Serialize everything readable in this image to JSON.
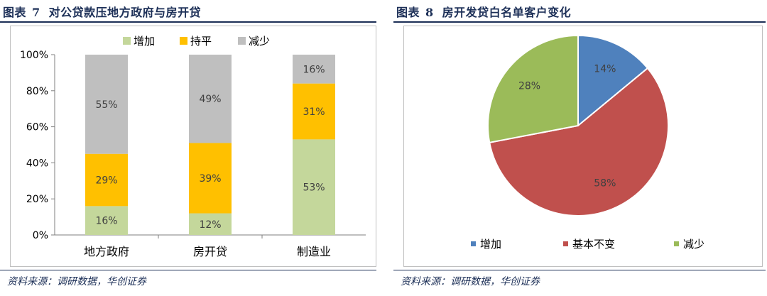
{
  "left_panel": {
    "title_prefix": "图表",
    "title_number": "7",
    "title_text": "对公贷款压地方政府与房开贷",
    "source": "资料来源：调研数据，华创证券"
  },
  "right_panel": {
    "title_prefix": "图表",
    "title_number": "8",
    "title_text": "房开发贷白名单客户变化",
    "source": "资料来源：调研数据，华创证券"
  },
  "colors": {
    "title": "#1c2f57",
    "increase_left": "#c4d79b",
    "flat_left": "#ffc000",
    "decrease_left": "#bfbfbf",
    "increase_right": "#4f81bd",
    "unchanged_right": "#c0504d",
    "decrease_right": "#9bbb59"
  },
  "chart_data": [
    {
      "type": "bar",
      "stacked": true,
      "categories": [
        "地方政府",
        "房开贷",
        "制造业"
      ],
      "series": [
        {
          "name": "增加",
          "values": [
            16,
            12,
            53
          ],
          "labels": [
            "16%",
            "12%",
            "53%"
          ]
        },
        {
          "name": "持平",
          "values": [
            29,
            39,
            31
          ],
          "labels": [
            "29%",
            "39%",
            "31%"
          ]
        },
        {
          "name": "减少",
          "values": [
            55,
            49,
            16
          ],
          "labels": [
            "55%",
            "49%",
            "16%"
          ]
        }
      ],
      "yticks": [
        "0%",
        "20%",
        "40%",
        "60%",
        "80%",
        "100%"
      ],
      "ylim": [
        0,
        100
      ],
      "legend_position": "top",
      "grid": false
    },
    {
      "type": "pie",
      "slices": [
        {
          "name": "增加",
          "value": 14,
          "label": "14%"
        },
        {
          "name": "基本不变",
          "value": 58,
          "label": "58%"
        },
        {
          "name": "减少",
          "value": 28,
          "label": "28%"
        }
      ],
      "legend_position": "bottom"
    }
  ]
}
